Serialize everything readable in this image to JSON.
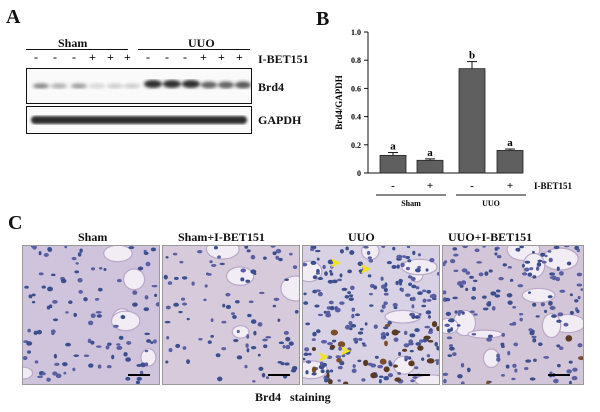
{
  "panelA": {
    "letter": "A",
    "group_sham": "Sham",
    "group_uuo": "UUO",
    "treatment_label": "I-BET151",
    "treatment_signs": [
      "-",
      "-",
      "-",
      "+",
      "+",
      "+",
      "-",
      "-",
      "-",
      "+",
      "+",
      "+"
    ],
    "band_labels": [
      "Brd4",
      "GAPDH"
    ]
  },
  "panelB": {
    "letter": "B"
  },
  "chart_data": {
    "type": "bar",
    "ylabel": "Brd4/GAPDH",
    "ylim": [
      0,
      1.0
    ],
    "yticks": [
      "0",
      "0.2",
      "0.4",
      "0.6",
      "0.8",
      "1.0"
    ],
    "values": [
      0.125,
      0.09,
      0.74,
      0.16
    ],
    "errors": [
      0.02,
      0.01,
      0.05,
      0.01
    ],
    "significance": [
      "a",
      "a",
      "b",
      "a"
    ],
    "signs": [
      "-",
      "+",
      "-",
      "+"
    ],
    "treatment_label": "I-BET151",
    "groups": [
      "Sham",
      "UUO"
    ],
    "bar_color": "#5f5f5f"
  },
  "panelC": {
    "letter": "C",
    "titles": [
      "Sham",
      "Sham+I-BET151",
      "UUO",
      "UUO+I-BET151"
    ],
    "caption": "Brd4   staining"
  }
}
